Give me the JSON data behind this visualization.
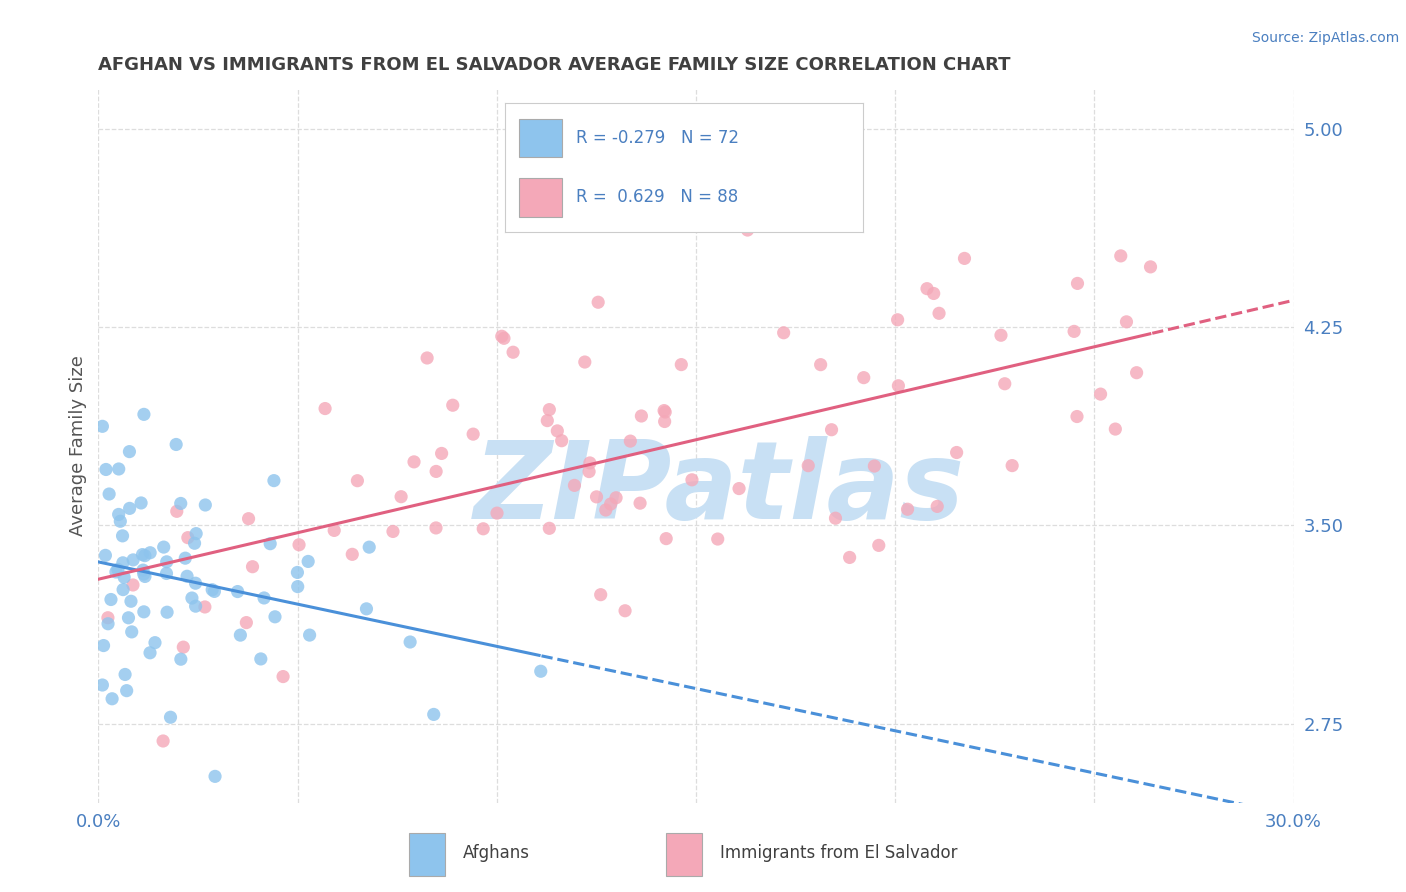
{
  "title": "AFGHAN VS IMMIGRANTS FROM EL SALVADOR AVERAGE FAMILY SIZE CORRELATION CHART",
  "source": "Source: ZipAtlas.com",
  "ylabel": "Average Family Size",
  "xlim": [
    0.0,
    0.3
  ],
  "ylim": [
    2.45,
    5.15
  ],
  "yticks": [
    2.75,
    3.5,
    4.25,
    5.0
  ],
  "xticks": [
    0.0,
    0.05,
    0.1,
    0.15,
    0.2,
    0.25,
    0.3
  ],
  "xtick_labels": [
    "0.0%",
    "",
    "",
    "",
    "",
    "",
    "30.0%"
  ],
  "blue_color": "#8EC4ED",
  "pink_color": "#F4A8B8",
  "blue_line_color": "#4A90D9",
  "pink_line_color": "#E06080",
  "tick_color": "#4A7FC0",
  "ylabel_color": "#555555",
  "title_color": "#404040",
  "source_color": "#4A7FC0",
  "legend_text_color": "#4A7FC0",
  "R_blue": -0.279,
  "N_blue": 72,
  "R_pink": 0.629,
  "N_pink": 88,
  "watermark": "ZIPatlas",
  "watermark_color": "#C8E0F4",
  "blue_seed": 43,
  "pink_seed": 7,
  "background_color": "#FFFFFF",
  "grid_color": "#DDDDDD"
}
